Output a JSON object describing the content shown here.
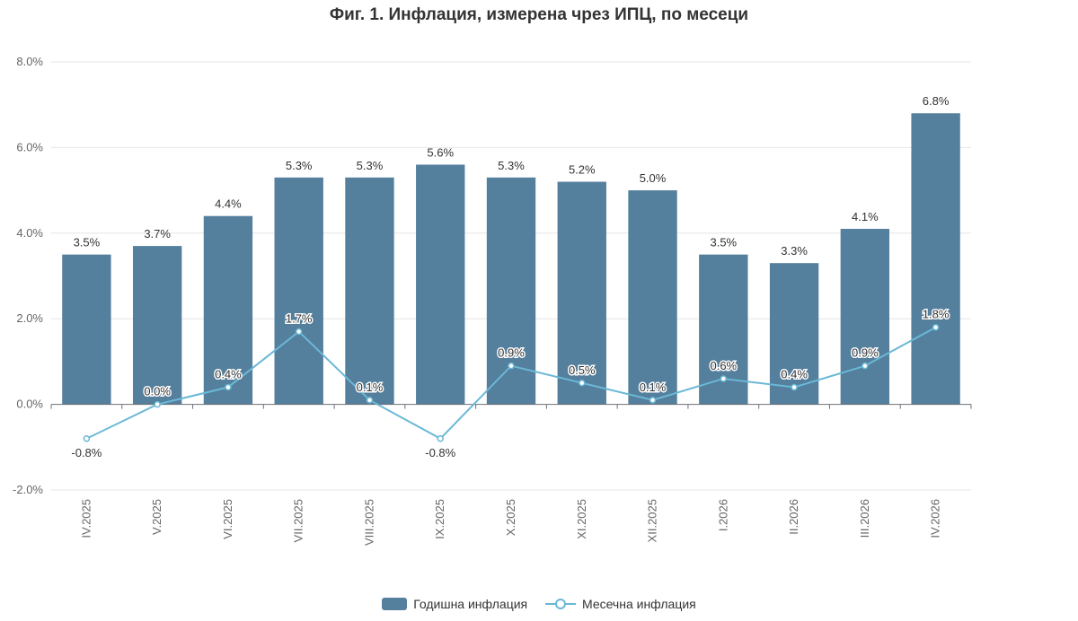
{
  "chart_data": {
    "type": "bar",
    "title": "Фиг. 1. Инфлация, измерена чрез ИПЦ, по месеци",
    "categories": [
      "IV.2025",
      "V.2025",
      "VI.2025",
      "VII.2025",
      "VIII.2025",
      "IX.2025",
      "X.2025",
      "XI.2025",
      "XII.2025",
      "I.2026",
      "II.2026",
      "III.2026",
      "IV.2026"
    ],
    "series": [
      {
        "name": "Годишна инфлация",
        "type": "bar",
        "color": "#547f9d",
        "values": [
          3.5,
          3.7,
          4.4,
          5.3,
          5.3,
          5.6,
          5.3,
          5.2,
          5.0,
          3.5,
          3.3,
          4.1,
          6.8
        ],
        "labels": [
          "3.5%",
          "3.7%",
          "4.4%",
          "5.3%",
          "5.3%",
          "5.6%",
          "5.3%",
          "5.2%",
          "5.0%",
          "3.5%",
          "3.3%",
          "4.1%",
          "6.8%"
        ]
      },
      {
        "name": "Месечна инфлация",
        "type": "line",
        "color": "#6ab8d6",
        "values": [
          -0.8,
          0.0,
          0.4,
          1.7,
          0.1,
          -0.8,
          0.9,
          0.5,
          0.1,
          0.6,
          0.4,
          0.9,
          1.8
        ],
        "labels": [
          "-0.8%",
          "0.0%",
          "0.4%",
          "1.7%",
          "0.1%",
          "-0.8%",
          "0.9%",
          "0.5%",
          "0.1%",
          "0.6%",
          "0.4%",
          "0.9%",
          "1.8%"
        ]
      }
    ],
    "ylim": [
      -2.0,
      8.0
    ],
    "yticks": [
      -2.0,
      0.0,
      2.0,
      4.0,
      6.0,
      8.0
    ],
    "ytick_labels": [
      "-2.0%",
      "0.0%",
      "2.0%",
      "4.0%",
      "6.0%",
      "8.0%"
    ],
    "xlabel": "",
    "ylabel": "",
    "grid": true,
    "legend_position": "bottom-center"
  }
}
